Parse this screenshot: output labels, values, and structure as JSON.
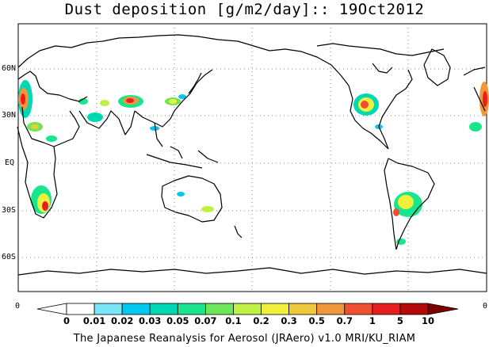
{
  "title": "Dust deposition [g/m2/day]:: 19Oct2012",
  "lat_labels": [
    "60N",
    "30N",
    "EQ",
    "30S",
    "60S"
  ],
  "colorbar": {
    "left_end": "0",
    "right_end": "0",
    "ticks": [
      "0",
      "0.01",
      "0.02",
      "0.03",
      "0.05",
      "0.07",
      "0.1",
      "0.2",
      "0.3",
      "0.5",
      "0.7",
      "1",
      "5",
      "10"
    ],
    "colors": [
      "#ffffff",
      "#ffffff",
      "#7be6f7",
      "#00c8f0",
      "#00d7b4",
      "#19e68c",
      "#6ee65a",
      "#bef046",
      "#f0f03c",
      "#f0c83c",
      "#f0963c",
      "#f05032",
      "#e61e1e",
      "#b40a0a",
      "#7d0000"
    ]
  },
  "credit": "The Japanese Reanalysis for Aerosol (JRAero) v1.0 MRI/KU_RIAM"
}
